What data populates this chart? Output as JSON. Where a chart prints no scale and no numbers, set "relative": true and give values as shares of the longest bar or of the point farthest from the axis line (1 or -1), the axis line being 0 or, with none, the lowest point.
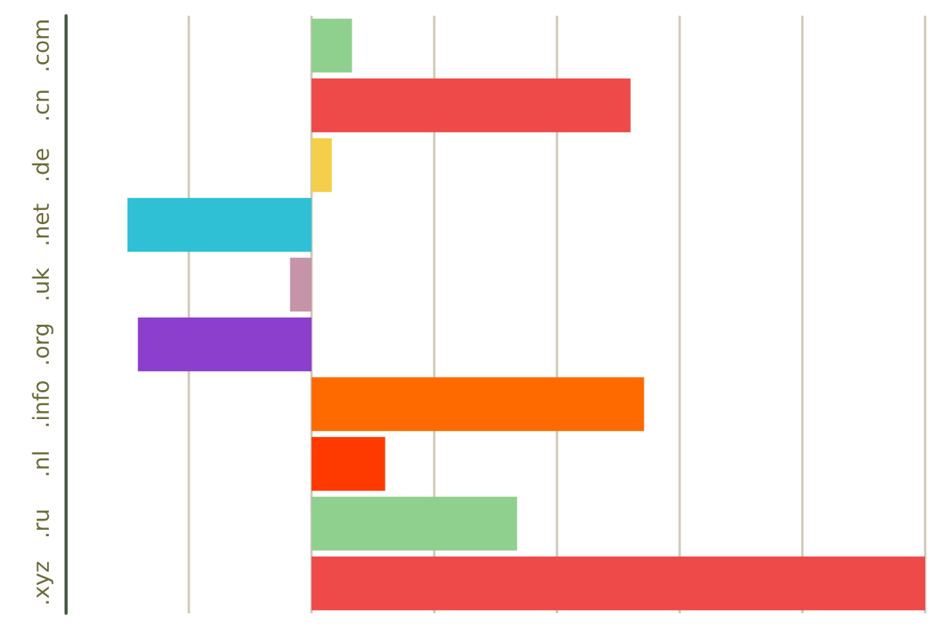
{
  "chart_data": {
    "type": "bar",
    "orientation": "horizontal",
    "relative": true,
    "grid": "x",
    "categories": [
      ".com",
      ".cn",
      ".de",
      ".net",
      ".uk",
      ".org",
      ".info",
      ".nl",
      ".ru",
      ".xyz"
    ],
    "values": [
      0.066,
      0.52,
      0.033,
      -0.3,
      -0.035,
      -0.283,
      0.542,
      0.12,
      0.335,
      1
    ],
    "colors": [
      "#90d08f",
      "#ef4a4a",
      "#f5cf4a",
      "#2fc0d6",
      "#c594a8",
      "#8b3fcc",
      "#ff6a00",
      "#ff3a00",
      "#90d08f",
      "#ef4a4a"
    ]
  }
}
